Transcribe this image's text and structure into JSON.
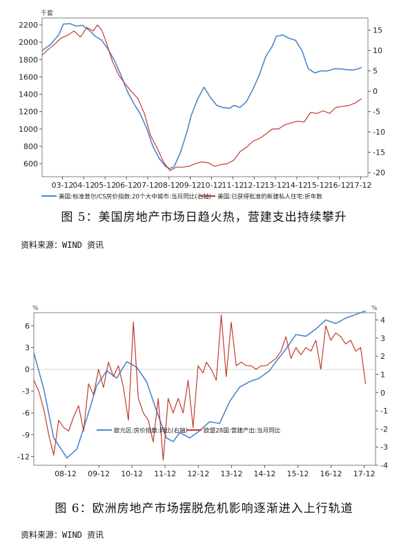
{
  "colors": {
    "blue": "#4a86c8",
    "red": "#c0392b",
    "axis": "#555555",
    "frame": "#7f7f7f"
  },
  "captions": {
    "fig5": "图 5：美国房地产市场日趋火热，营建支出持续攀升",
    "fig6": "图 6：欧洲房地产市场摆脱危机影响逐渐进入上行轨道"
  },
  "sources": {
    "fig5": "资料来源：WIND 资讯",
    "fig6": "资料来源：WIND 资讯"
  },
  "chart_data": [
    {
      "type": "line",
      "left_unit": "千套",
      "x_ticks": [
        "03-12",
        "04-12",
        "05-12",
        "06-12",
        "07-12",
        "08-12",
        "09-12",
        "10-12",
        "11-12",
        "12-12",
        "13-12",
        "14-12",
        "15-12",
        "16-12",
        "17-12"
      ],
      "xlim": [
        2003.0,
        2018.3
      ],
      "ylim_left": [
        450,
        2280
      ],
      "y_ticks_left": [
        600,
        800,
        1000,
        1200,
        1400,
        1600,
        1800,
        2000,
        2200
      ],
      "ylim_right": [
        -21,
        18
      ],
      "y_ticks_right": [
        -20,
        -15,
        -10,
        -5,
        0,
        5,
        10,
        15
      ],
      "series": [
        {
          "name": "美国:标准普尔/CS房价指数:20个大中城市:当月同比(右轴)",
          "axis": "right",
          "color": "blue",
          "x": [
            2003.0,
            2003.4,
            2003.8,
            2004.0,
            2004.3,
            2004.6,
            2004.9,
            2005.2,
            2005.5,
            2005.8,
            2006.1,
            2006.4,
            2006.7,
            2007.0,
            2007.3,
            2007.6,
            2007.9,
            2008.2,
            2008.5,
            2008.8,
            2009.0,
            2009.2,
            2009.5,
            2009.8,
            2010.0,
            2010.3,
            2010.6,
            2010.9,
            2011.2,
            2011.5,
            2011.8,
            2012.0,
            2012.3,
            2012.6,
            2012.9,
            2013.2,
            2013.5,
            2013.8,
            2014.0,
            2014.3,
            2014.6,
            2014.9,
            2015.2,
            2015.5,
            2015.8,
            2016.1,
            2016.4,
            2016.7,
            2017.0,
            2017.3,
            2017.6,
            2017.9,
            2018.0
          ],
          "y": [
            10,
            11.5,
            14,
            16.5,
            16.6,
            16,
            16.2,
            15,
            13.5,
            12.5,
            10.3,
            7.5,
            4,
            0,
            -3,
            -5.5,
            -9,
            -13.5,
            -16.5,
            -18.5,
            -19,
            -18.5,
            -15,
            -10,
            -6,
            -2,
            1,
            -1.5,
            -3.5,
            -4,
            -4.2,
            -3.5,
            -4,
            -2.5,
            0.5,
            4,
            8.5,
            11,
            13.5,
            13.8,
            13,
            12.5,
            10,
            5.5,
            4.5,
            5,
            5,
            5.5,
            5.5,
            5.3,
            5.2,
            5.6,
            5.9
          ]
        },
        {
          "name": "美国:已获得批准的新建私人住宅:折年数",
          "axis": "left",
          "color": "red",
          "x": [
            2003.0,
            2003.3,
            2003.6,
            2003.9,
            2004.2,
            2004.5,
            2004.8,
            2005.1,
            2005.4,
            2005.6,
            2005.8,
            2006.0,
            2006.3,
            2006.6,
            2006.9,
            2007.2,
            2007.5,
            2007.8,
            2008.1,
            2008.4,
            2008.7,
            2009.0,
            2009.3,
            2009.6,
            2009.9,
            2010.2,
            2010.5,
            2010.8,
            2011.1,
            2011.4,
            2011.7,
            2012.0,
            2012.3,
            2012.6,
            2012.9,
            2013.2,
            2013.5,
            2013.8,
            2014.1,
            2014.4,
            2014.7,
            2015.0,
            2015.3,
            2015.6,
            2015.9,
            2016.2,
            2016.5,
            2016.8,
            2017.1,
            2017.4,
            2017.7,
            2018.0
          ],
          "y": [
            1850,
            1920,
            1980,
            2050,
            2080,
            2130,
            2060,
            2170,
            2130,
            2200,
            2140,
            2010,
            1780,
            1620,
            1520,
            1430,
            1350,
            1180,
            920,
            780,
            620,
            520,
            560,
            560,
            570,
            600,
            620,
            610,
            570,
            590,
            600,
            640,
            740,
            790,
            860,
            890,
            940,
            1000,
            1000,
            1050,
            1070,
            1090,
            1080,
            1190,
            1180,
            1210,
            1180,
            1250,
            1260,
            1270,
            1300,
            1350
          ]
        }
      ],
      "legend": {
        "placement": "bottom",
        "labels": [
          "美国:标准普尔/CS房价指数:20个大中城市:当月同比(右轴)",
          "美国:已获得批准的新建私人住宅:折年数"
        ]
      }
    },
    {
      "type": "line",
      "left_unit": "%",
      "right_unit": "%",
      "x_ticks": [
        "08-12",
        "09-12",
        "10-12",
        "11-12",
        "12-12",
        "13-12",
        "14-12",
        "15-12",
        "16-12",
        "17-12"
      ],
      "xlim": [
        2008.0,
        2018.3
      ],
      "ylim_left": [
        -13.2,
        7.8
      ],
      "y_ticks_left": [
        -12,
        -9,
        -6,
        -3,
        0,
        3,
        6
      ],
      "ylim_right": [
        -4,
        4.4
      ],
      "y_ticks_right": [
        -4,
        -3,
        -2,
        -1,
        0,
        1,
        2,
        3,
        4
      ],
      "series": [
        {
          "name": "欧元区:房价指数:同比(右轴)",
          "axis": "right",
          "color": "blue",
          "x": [
            2008.0,
            2008.3,
            2008.6,
            2009.0,
            2009.3,
            2009.6,
            2009.9,
            2010.2,
            2010.5,
            2010.8,
            2011.1,
            2011.4,
            2011.7,
            2012.0,
            2012.2,
            2012.4,
            2012.7,
            2013.0,
            2013.3,
            2013.6,
            2013.9,
            2014.2,
            2014.5,
            2014.8,
            2015.1,
            2015.3,
            2015.6,
            2015.9,
            2016.2,
            2016.5,
            2016.8,
            2017.1,
            2017.4,
            2017.7,
            2018.0
          ],
          "y": [
            2.2,
            0.2,
            -2.5,
            -3.6,
            -3.1,
            -1.4,
            0.4,
            1.2,
            0.8,
            1.7,
            1.4,
            0.6,
            -1,
            -2.5,
            -2.7,
            -2.2,
            -2.5,
            -2.1,
            -1.6,
            -1.7,
            -0.5,
            0.3,
            0.6,
            0.8,
            1.2,
            1.7,
            2.4,
            3.2,
            3.1,
            3.5,
            4,
            3.8,
            4.1,
            4.3,
            4.5
          ]
        },
        {
          "name": "欧盟28国:营建产出:当月同比",
          "axis": "left",
          "color": "red",
          "x": [
            2008.0,
            2008.15,
            2008.3,
            2008.45,
            2008.6,
            2008.75,
            2008.9,
            2009.05,
            2009.2,
            2009.35,
            2009.5,
            2009.65,
            2009.8,
            2009.95,
            2010.1,
            2010.25,
            2010.4,
            2010.55,
            2010.7,
            2010.85,
            2011.0,
            2011.15,
            2011.3,
            2011.45,
            2011.6,
            2011.75,
            2011.9,
            2012.05,
            2012.2,
            2012.35,
            2012.5,
            2012.65,
            2012.8,
            2012.95,
            2013.1,
            2013.2,
            2013.35,
            2013.5,
            2013.65,
            2013.8,
            2013.95,
            2014.1,
            2014.25,
            2014.4,
            2014.55,
            2014.7,
            2014.85,
            2015.0,
            2015.15,
            2015.3,
            2015.45,
            2015.6,
            2015.75,
            2015.9,
            2016.05,
            2016.2,
            2016.35,
            2016.5,
            2016.65,
            2016.8,
            2016.95,
            2017.1,
            2017.25,
            2017.4,
            2017.55,
            2017.7,
            2017.85,
            2018.0
          ],
          "y": [
            -1.5,
            -3,
            -5.5,
            -9,
            -11.8,
            -7,
            -8,
            -8.5,
            -6.5,
            -5,
            -8.5,
            -2,
            -3.5,
            0,
            -2.5,
            1,
            -1,
            0.5,
            -2.5,
            -7,
            6.5,
            -4,
            -6,
            -7,
            -10,
            -4,
            -12.5,
            -4,
            -6,
            -4,
            -6,
            -1.5,
            -8,
            0.5,
            -0.5,
            1,
            0,
            -1.5,
            7.5,
            -1,
            6.5,
            0.5,
            1,
            0.5,
            0.5,
            0,
            0.5,
            0.5,
            1,
            1.5,
            2.5,
            4.5,
            1.5,
            3,
            2,
            3,
            2.5,
            4,
            0,
            6,
            4,
            5,
            4.5,
            3.5,
            4,
            2.5,
            3,
            -2
          ]
        }
      ],
      "legend": {
        "placement": "bottom",
        "labels": [
          "欧元区:房价指数:同比(右轴)",
          "欧盟28国:营建产出:当月同比"
        ]
      }
    }
  ]
}
